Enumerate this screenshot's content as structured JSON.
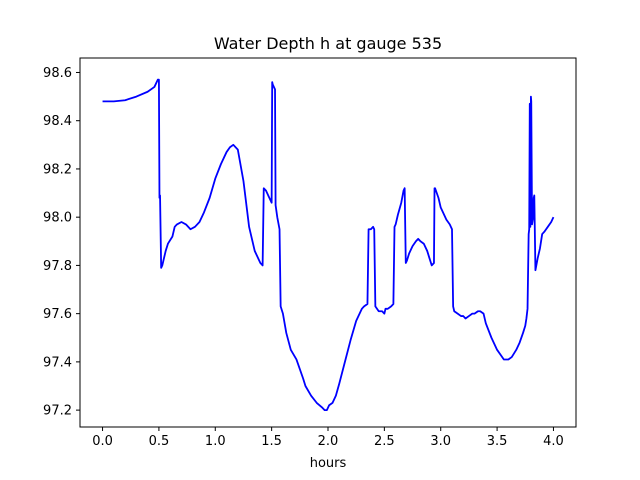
{
  "chart_data": {
    "type": "line",
    "title": "Water Depth h at gauge 535",
    "xlabel": "hours",
    "ylabel": "",
    "xlim": [
      -0.2,
      4.2
    ],
    "ylim": [
      97.13,
      98.66
    ],
    "xticks": [
      0.0,
      0.5,
      1.0,
      1.5,
      2.0,
      2.5,
      3.0,
      3.5,
      4.0
    ],
    "xtick_labels": [
      "0.0",
      "0.5",
      "1.0",
      "1.5",
      "2.0",
      "2.5",
      "3.0",
      "3.5",
      "4.0"
    ],
    "yticks": [
      97.2,
      97.4,
      97.6,
      97.8,
      98.0,
      98.2,
      98.4,
      98.6
    ],
    "ytick_labels": [
      "97.2",
      "97.4",
      "97.6",
      "97.8",
      "98.0",
      "98.2",
      "98.4",
      "98.6"
    ],
    "grid": false,
    "series_color": "#0000ff",
    "series": [
      {
        "x": [
          0.0,
          0.1,
          0.2,
          0.3,
          0.4,
          0.46,
          0.49,
          0.5,
          0.505,
          0.51,
          0.52,
          0.53,
          0.54,
          0.56,
          0.58,
          0.62,
          0.64,
          0.66,
          0.7,
          0.74,
          0.78,
          0.82,
          0.86,
          0.9,
          0.95,
          1.0,
          1.05,
          1.1,
          1.13,
          1.16,
          1.2,
          1.25,
          1.3,
          1.35,
          1.4,
          1.42,
          1.43,
          1.45,
          1.47,
          1.5,
          1.505,
          1.51,
          1.53,
          1.535,
          1.55,
          1.57,
          1.58,
          1.6,
          1.63,
          1.67,
          1.72,
          1.78,
          1.8,
          1.85,
          1.9,
          1.95,
          1.97,
          1.99,
          2.01,
          2.04,
          2.07,
          2.1,
          2.15,
          2.2,
          2.25,
          2.3,
          2.32,
          2.35,
          2.36,
          2.38,
          2.4,
          2.41,
          2.42,
          2.45,
          2.48,
          2.5,
          2.51,
          2.53,
          2.56,
          2.58,
          2.59,
          2.6,
          2.62,
          2.65,
          2.67,
          2.68,
          2.69,
          2.7,
          2.72,
          2.75,
          2.78,
          2.8,
          2.82,
          2.85,
          2.88,
          2.9,
          2.92,
          2.94,
          2.945,
          2.95,
          2.98,
          3.0,
          3.03,
          3.05,
          3.08,
          3.1,
          3.11,
          3.12,
          3.15,
          3.18,
          3.2,
          3.22,
          3.25,
          3.28,
          3.3,
          3.33,
          3.35,
          3.38,
          3.4,
          3.45,
          3.5,
          3.53,
          3.56,
          3.6,
          3.63,
          3.67,
          3.7,
          3.73,
          3.75,
          3.76,
          3.77,
          3.78,
          3.785,
          3.79,
          3.795,
          3.8,
          3.803,
          3.81,
          3.82,
          3.825,
          3.83,
          3.84,
          3.86,
          3.88,
          3.9,
          3.92,
          3.95,
          3.98,
          4.0
        ],
        "y": [
          98.48,
          98.48,
          98.485,
          98.5,
          98.52,
          98.54,
          98.57,
          98.57,
          98.08,
          98.09,
          97.79,
          97.8,
          97.82,
          97.86,
          97.89,
          97.92,
          97.96,
          97.97,
          97.98,
          97.97,
          97.95,
          97.96,
          97.98,
          98.02,
          98.08,
          98.16,
          98.22,
          98.27,
          98.29,
          98.3,
          98.28,
          98.15,
          97.96,
          97.86,
          97.81,
          97.8,
          98.12,
          98.11,
          98.09,
          98.06,
          98.56,
          98.55,
          98.53,
          98.05,
          98.0,
          97.95,
          97.63,
          97.6,
          97.52,
          97.45,
          97.41,
          97.33,
          97.3,
          97.26,
          97.23,
          97.21,
          97.2,
          97.2,
          97.22,
          97.23,
          97.26,
          97.31,
          97.4,
          97.49,
          97.57,
          97.62,
          97.63,
          97.64,
          97.95,
          97.95,
          97.96,
          97.95,
          97.63,
          97.61,
          97.61,
          97.6,
          97.62,
          97.62,
          97.63,
          97.64,
          97.96,
          97.97,
          98.01,
          98.06,
          98.11,
          98.12,
          97.81,
          97.82,
          97.85,
          97.88,
          97.9,
          97.91,
          97.9,
          97.89,
          97.86,
          97.83,
          97.8,
          97.81,
          98.12,
          98.12,
          98.08,
          98.04,
          98.01,
          97.99,
          97.97,
          97.95,
          97.63,
          97.61,
          97.6,
          97.59,
          97.59,
          97.58,
          97.59,
          97.6,
          97.6,
          97.61,
          97.61,
          97.6,
          97.56,
          97.5,
          97.45,
          97.43,
          97.41,
          97.41,
          97.42,
          97.45,
          97.48,
          97.52,
          97.55,
          97.58,
          97.62,
          97.93,
          97.95,
          98.47,
          97.96,
          98.5,
          98.48,
          97.97,
          98.0,
          98.08,
          98.09,
          97.78,
          97.83,
          97.87,
          97.93,
          97.94,
          97.96,
          97.98,
          98.0
        ]
      }
    ]
  }
}
